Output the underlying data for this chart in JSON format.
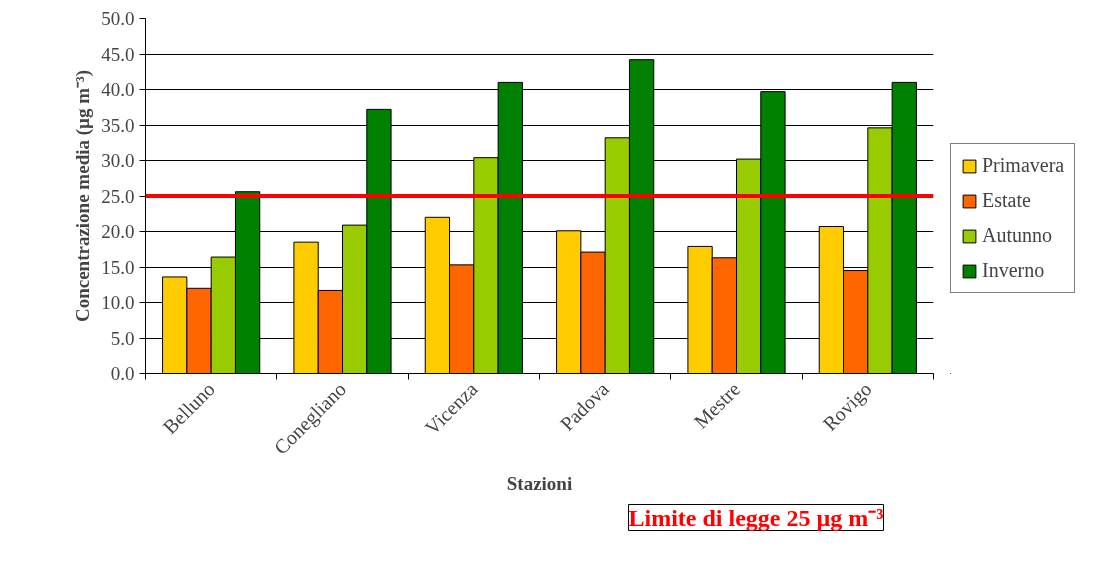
{
  "chart_data": {
    "type": "bar",
    "xlabel": "Stazioni",
    "ylabel": "Concentrazione media (µg m⁻³)",
    "categories": [
      "Belluno",
      "Conegliano",
      "Vicenza",
      "Padova",
      "Mestre",
      "Rovigo"
    ],
    "series": [
      {
        "name": "Primavera",
        "color": "#ffcc00",
        "values": [
          13.6,
          18.5,
          22.0,
          20.1,
          17.9,
          20.7
        ]
      },
      {
        "name": "Estate",
        "color": "#ff6600",
        "values": [
          12.0,
          11.7,
          15.3,
          17.1,
          16.3,
          14.5
        ]
      },
      {
        "name": "Autunno",
        "color": "#99cc00",
        "values": [
          16.4,
          20.9,
          30.4,
          33.2,
          30.2,
          34.6
        ]
      },
      {
        "name": "Inverno",
        "color": "#008000",
        "values": [
          25.6,
          37.2,
          41.0,
          44.2,
          39.7,
          41.0
        ]
      }
    ],
    "ylim": [
      0,
      50
    ],
    "yticks": [
      {
        "value": 0,
        "label": "0.0"
      },
      {
        "value": 5,
        "label": "5.0"
      },
      {
        "value": 10,
        "label": "10.0"
      },
      {
        "value": 15,
        "label": "15.0"
      },
      {
        "value": 20,
        "label": "20.0"
      },
      {
        "value": 25,
        "label": "25.0"
      },
      {
        "value": 30,
        "label": "30.0"
      },
      {
        "value": 35,
        "label": "35.0"
      },
      {
        "value": 40,
        "label": "40.0"
      },
      {
        "value": 45,
        "label": "45.0"
      },
      {
        "value": 50,
        "label": "50.0"
      }
    ],
    "ref_lines": [
      {
        "axis": "y",
        "value": 25,
        "color": "#ff0000"
      }
    ],
    "annotations": [
      "Limite di legge 25 µg m⁻³"
    ],
    "grid": "y",
    "legend": "right"
  }
}
